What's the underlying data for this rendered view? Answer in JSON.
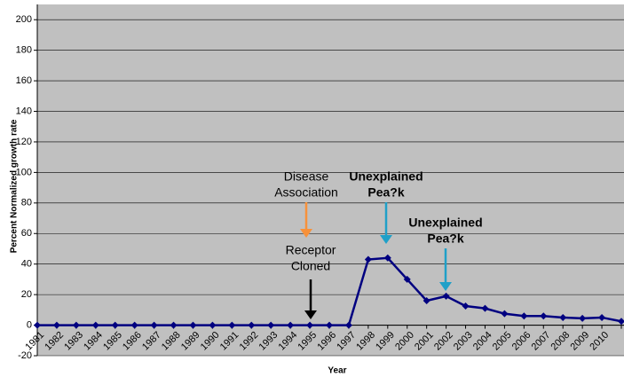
{
  "chart_data": {
    "type": "line",
    "y_label": "Percent Normalized growth rate",
    "x_label": "Year",
    "categories": [
      "1981",
      "1982",
      "1983",
      "1984",
      "1985",
      "1986",
      "1987",
      "1988",
      "1989",
      "1990",
      "1991",
      "1992",
      "1993",
      "1994",
      "1995",
      "1996",
      "1997",
      "1998",
      "1999",
      "2000",
      "2001",
      "2002",
      "2003",
      "2004",
      "2005",
      "2006",
      "2007",
      "2008",
      "2009",
      "2010",
      null
    ],
    "series": [
      {
        "color": "#000080",
        "values": [
          0,
          0,
          0,
          0,
          0,
          0,
          0,
          0,
          0,
          0,
          0,
          0,
          0,
          0,
          0,
          0,
          0,
          43,
          44,
          30,
          16,
          19,
          12.5,
          11,
          7.5,
          6,
          6,
          5,
          4.5,
          5,
          2.5
        ]
      }
    ],
    "ylim": [
      -20,
      210
    ],
    "yticks": [
      -20,
      0,
      20,
      40,
      60,
      80,
      100,
      120,
      140,
      160,
      180,
      200
    ],
    "grid": true,
    "plot_background": "#c0c0c0",
    "annotations": [
      {
        "lines": [
          "Disease",
          "Association"
        ],
        "color": "#f7913a"
      },
      {
        "lines": [
          "Receptor",
          "Cloned"
        ],
        "color": "#000000"
      },
      {
        "lines": [
          "Unexplained",
          "Pea?k"
        ],
        "color": "#1fa0c8",
        "bold": true
      },
      {
        "lines": [
          "Unexplained",
          "Pea?k"
        ],
        "color": "#1fa0c8",
        "bold": true
      }
    ]
  }
}
